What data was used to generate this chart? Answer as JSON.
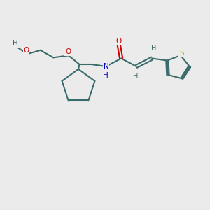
{
  "bg_color": "#ebebeb",
  "bond_color": "#3a6b6b",
  "o_color": "#cc0000",
  "n_color": "#0000cc",
  "s_color": "#b8b800",
  "h_color": "#3a6b6b",
  "font_size": 7.5,
  "line_width": 1.5,
  "figsize": [
    3.0,
    3.0
  ],
  "dpi": 100,
  "xlim": [
    0,
    10
  ],
  "ylim": [
    0,
    10
  ]
}
